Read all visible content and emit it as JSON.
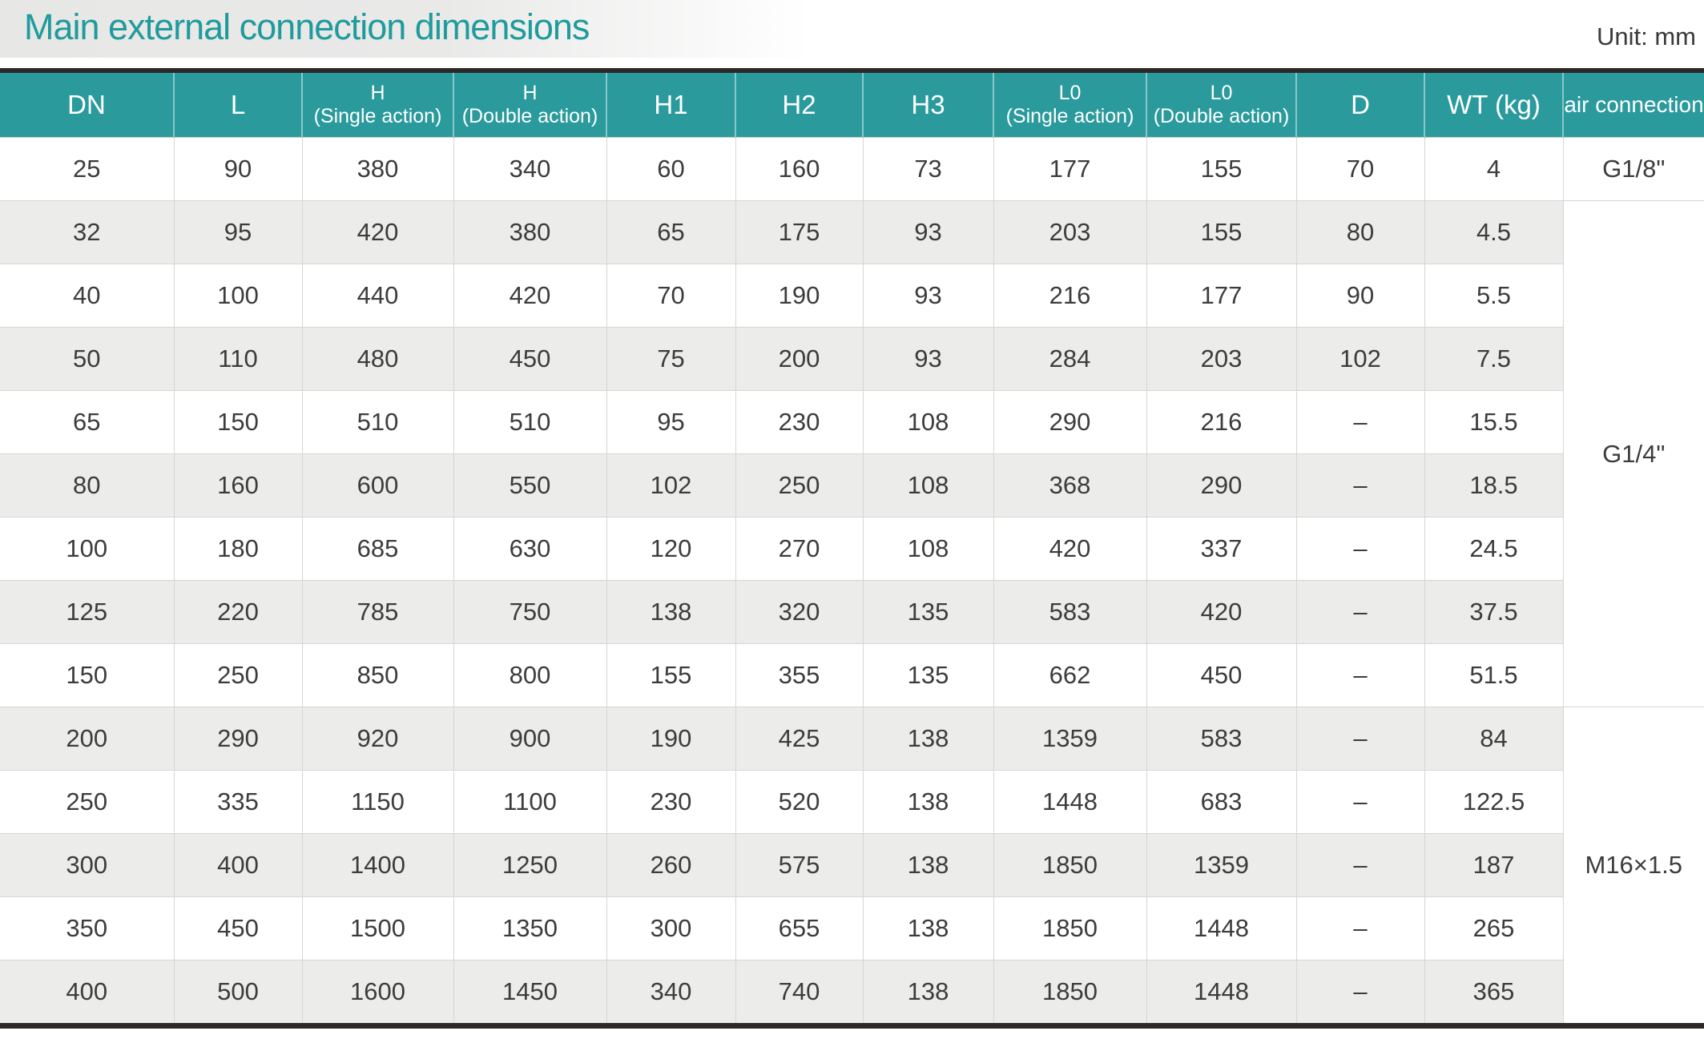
{
  "title": "Main external connection dimensions",
  "unit_label": "Unit: mm",
  "colors": {
    "header_teal": "#2b9a9d",
    "title_teal": "#1f9b9d",
    "stripe_gray": "#ececeb",
    "border_dark": "#2d2926",
    "cell_text": "#3c3c3c"
  },
  "table": {
    "columns": [
      {
        "label": "DN"
      },
      {
        "label": "L"
      },
      {
        "label": "H",
        "sub": "(Single action)"
      },
      {
        "label": "H",
        "sub": "(Double action)"
      },
      {
        "label": "H1"
      },
      {
        "label": "H2"
      },
      {
        "label": "H3"
      },
      {
        "label": "L0",
        "sub": "(Single action)"
      },
      {
        "label": "L0",
        "sub": "(Double action)"
      },
      {
        "label": "D"
      },
      {
        "label": "WT (kg)"
      },
      {
        "label": "air connection"
      }
    ],
    "rows": [
      [
        "25",
        "90",
        "380",
        "340",
        "60",
        "160",
        "73",
        "177",
        "155",
        "70",
        "4"
      ],
      [
        "32",
        "95",
        "420",
        "380",
        "65",
        "175",
        "93",
        "203",
        "155",
        "80",
        "4.5"
      ],
      [
        "40",
        "100",
        "440",
        "420",
        "70",
        "190",
        "93",
        "216",
        "177",
        "90",
        "5.5"
      ],
      [
        "50",
        "110",
        "480",
        "450",
        "75",
        "200",
        "93",
        "284",
        "203",
        "102",
        "7.5"
      ],
      [
        "65",
        "150",
        "510",
        "510",
        "95",
        "230",
        "108",
        "290",
        "216",
        "–",
        "15.5"
      ],
      [
        "80",
        "160",
        "600",
        "550",
        "102",
        "250",
        "108",
        "368",
        "290",
        "–",
        "18.5"
      ],
      [
        "100",
        "180",
        "685",
        "630",
        "120",
        "270",
        "108",
        "420",
        "337",
        "–",
        "24.5"
      ],
      [
        "125",
        "220",
        "785",
        "750",
        "138",
        "320",
        "135",
        "583",
        "420",
        "–",
        "37.5"
      ],
      [
        "150",
        "250",
        "850",
        "800",
        "155",
        "355",
        "135",
        "662",
        "450",
        "–",
        "51.5"
      ],
      [
        "200",
        "290",
        "920",
        "900",
        "190",
        "425",
        "138",
        "1359",
        "583",
        "–",
        "84"
      ],
      [
        "250",
        "335",
        "1150",
        "1100",
        "230",
        "520",
        "138",
        "1448",
        "683",
        "–",
        "122.5"
      ],
      [
        "300",
        "400",
        "1400",
        "1250",
        "260",
        "575",
        "138",
        "1850",
        "1359",
        "–",
        "187"
      ],
      [
        "350",
        "450",
        "1500",
        "1350",
        "300",
        "655",
        "138",
        "1850",
        "1448",
        "–",
        "265"
      ],
      [
        "400",
        "500",
        "1600",
        "1450",
        "340",
        "740",
        "138",
        "1850",
        "1448",
        "–",
        "365"
      ]
    ],
    "air_cells": [
      {
        "row": 0,
        "rowspan": 1,
        "value": "G1/8\""
      },
      {
        "row": 1,
        "rowspan": 8,
        "value": "G1/4\""
      },
      {
        "row": 9,
        "rowspan": 5,
        "value": "M16×1.5"
      }
    ]
  }
}
